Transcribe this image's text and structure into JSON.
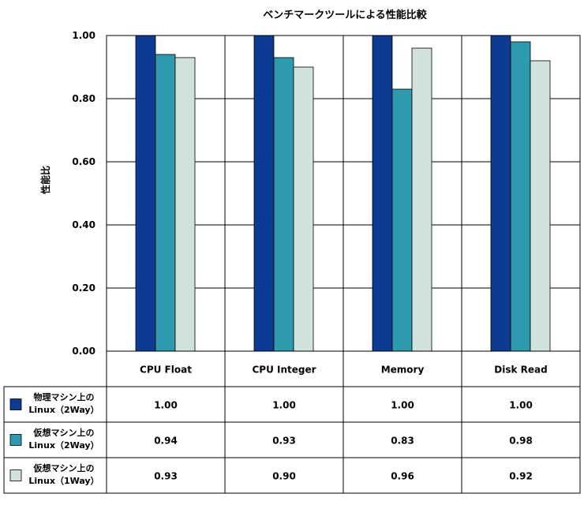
{
  "chart_data": {
    "type": "bar",
    "title": "ベンチマークツールによる性能比較",
    "ylabel": "性能比",
    "xlabel": "",
    "ylim": [
      0,
      1.0
    ],
    "yticks": [
      "0.00",
      "0.20",
      "0.40",
      "0.60",
      "0.80",
      "1.00"
    ],
    "grid": true,
    "legend": "table-left",
    "categories": [
      "CPU Float",
      "CPU Integer",
      "Memory",
      "Disk Read"
    ],
    "series": [
      {
        "name_lines": [
          "物理マシン上の",
          "Linux（2Way）"
        ],
        "color": "#0d3b94",
        "values": [
          1.0,
          1.0,
          1.0,
          1.0
        ],
        "labels": [
          "1.00",
          "1.00",
          "1.00",
          "1.00"
        ]
      },
      {
        "name_lines": [
          "仮想マシン上の",
          "Linux（2Way）"
        ],
        "color": "#2e9aad",
        "values": [
          0.94,
          0.93,
          0.83,
          0.98
        ],
        "labels": [
          "0.94",
          "0.93",
          "0.83",
          "0.98"
        ]
      },
      {
        "name_lines": [
          "仮想マシン上の",
          "Linux（1Way）"
        ],
        "color": "#d1e2dc",
        "values": [
          0.93,
          0.9,
          0.96,
          0.92
        ],
        "labels": [
          "0.93",
          "0.90",
          "0.96",
          "0.92"
        ]
      }
    ]
  }
}
